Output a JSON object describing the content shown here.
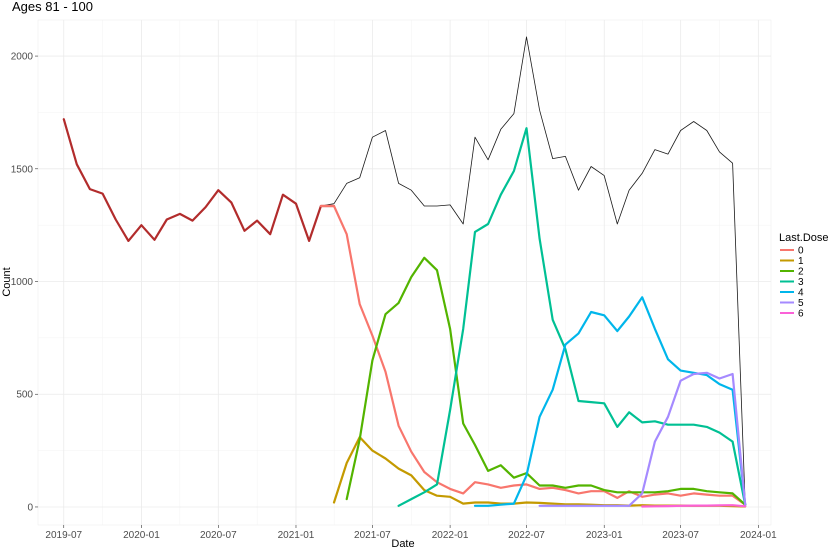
{
  "chart_data": {
    "type": "line",
    "title": "Ages 81 - 100",
    "xlabel": "Date",
    "ylabel": "Count",
    "grid": true,
    "legend_position": "right",
    "legend_title": "Last.Dose",
    "xlim": [
      "2019-05-01",
      "2024-01-31"
    ],
    "ylim": [
      -80,
      2160
    ],
    "x_ticks": [
      "2019-07",
      "2020-01",
      "2020-07",
      "2021-01",
      "2021-07",
      "2022-01",
      "2022-07",
      "2023-01",
      "2023-07",
      "2024-01"
    ],
    "y_ticks": [
      0,
      500,
      1000,
      1500,
      2000
    ],
    "series": [
      {
        "name": "total",
        "color": "#1a1a1a",
        "width": 0.8,
        "dates": [
          "2021-03-01",
          "2021-04-01",
          "2021-05-01",
          "2021-06-01",
          "2021-07-01",
          "2021-08-01",
          "2021-09-01",
          "2021-10-01",
          "2021-11-01",
          "2021-12-01",
          "2022-01-01",
          "2022-02-01",
          "2022-03-01",
          "2022-04-01",
          "2022-05-01",
          "2022-06-01",
          "2022-07-01",
          "2022-08-01",
          "2022-09-01",
          "2022-10-01",
          "2022-11-01",
          "2022-12-01",
          "2023-01-01",
          "2023-02-01",
          "2023-03-01",
          "2023-04-01",
          "2023-05-01",
          "2023-06-01",
          "2023-07-01",
          "2023-08-01",
          "2023-09-01",
          "2023-10-01",
          "2023-11-01",
          "2023-12-01"
        ],
        "values": [
          1335,
          1345,
          1435,
          1460,
          1640,
          1670,
          1435,
          1405,
          1335,
          1335,
          1340,
          1255,
          1640,
          1540,
          1675,
          1745,
          2085,
          1760,
          1545,
          1555,
          1405,
          1510,
          1470,
          1255,
          1405,
          1480,
          1585,
          1565,
          1670,
          1710,
          1670,
          1575,
          1525,
          10
        ]
      },
      {
        "name": "pre",
        "color": "#b22c2c",
        "width": 2.2,
        "dates": [
          "2019-07-01",
          "2019-08-01",
          "2019-09-01",
          "2019-10-01",
          "2019-11-01",
          "2019-12-01",
          "2020-01-01",
          "2020-02-01",
          "2020-03-01",
          "2020-04-01",
          "2020-05-01",
          "2020-06-01",
          "2020-07-01",
          "2020-08-01",
          "2020-09-01",
          "2020-10-01",
          "2020-11-01",
          "2020-12-01",
          "2021-01-01",
          "2021-02-01",
          "2021-03-01",
          "2021-04-01"
        ],
        "values": [
          1720,
          1520,
          1410,
          1390,
          1275,
          1180,
          1250,
          1185,
          1275,
          1300,
          1270,
          1330,
          1405,
          1350,
          1225,
          1270,
          1210,
          1385,
          1345,
          1180,
          1335,
          1335
        ]
      },
      {
        "name": "0",
        "color": "#f8766d",
        "width": 2.2,
        "dates": [
          "2021-03-01",
          "2021-04-01",
          "2021-05-01",
          "2021-06-01",
          "2021-07-01",
          "2021-08-01",
          "2021-09-01",
          "2021-10-01",
          "2021-11-01",
          "2021-12-01",
          "2022-01-01",
          "2022-02-01",
          "2022-03-01",
          "2022-04-01",
          "2022-05-01",
          "2022-06-01",
          "2022-07-01",
          "2022-08-01",
          "2022-09-01",
          "2022-10-01",
          "2022-11-01",
          "2022-12-01",
          "2023-01-01",
          "2023-02-01",
          "2023-03-01",
          "2023-04-01",
          "2023-05-01",
          "2023-06-01",
          "2023-07-01",
          "2023-08-01",
          "2023-09-01",
          "2023-10-01",
          "2023-11-01",
          "2023-12-01"
        ],
        "values": [
          1335,
          1335,
          1210,
          900,
          760,
          600,
          360,
          245,
          155,
          110,
          80,
          60,
          110,
          100,
          85,
          95,
          100,
          80,
          85,
          75,
          60,
          70,
          70,
          40,
          70,
          45,
          55,
          60,
          50,
          60,
          55,
          50,
          50,
          10
        ]
      },
      {
        "name": "1",
        "color": "#c49a00",
        "width": 2.2,
        "dates": [
          "2021-04-01",
          "2021-05-01",
          "2021-06-01",
          "2021-07-01",
          "2021-08-01",
          "2021-09-01",
          "2021-10-01",
          "2021-11-01",
          "2021-12-01",
          "2022-01-01",
          "2022-02-01",
          "2022-03-01",
          "2022-04-01",
          "2022-05-01",
          "2022-06-01",
          "2022-07-01",
          "2022-08-01",
          "2022-09-01",
          "2022-10-01",
          "2022-11-01",
          "2022-12-01",
          "2023-01-01",
          "2023-02-01",
          "2023-03-01",
          "2023-04-01",
          "2023-05-01",
          "2023-06-01",
          "2023-07-01",
          "2023-08-01",
          "2023-09-01",
          "2023-10-01",
          "2023-11-01",
          "2023-12-01"
        ],
        "values": [
          20,
          195,
          310,
          250,
          215,
          170,
          140,
          75,
          50,
          45,
          15,
          20,
          20,
          15,
          15,
          20,
          18,
          15,
          12,
          12,
          10,
          8,
          8,
          6,
          8,
          6,
          6,
          6,
          5,
          5,
          5,
          4,
          2
        ]
      },
      {
        "name": "2",
        "color": "#53b400",
        "width": 2.2,
        "dates": [
          "2021-05-01",
          "2021-06-01",
          "2021-07-01",
          "2021-08-01",
          "2021-09-01",
          "2021-10-01",
          "2021-11-01",
          "2021-12-01",
          "2022-01-01",
          "2022-02-01",
          "2022-03-01",
          "2022-04-01",
          "2022-05-01",
          "2022-06-01",
          "2022-07-01",
          "2022-08-01",
          "2022-09-01",
          "2022-10-01",
          "2022-11-01",
          "2022-12-01",
          "2023-01-01",
          "2023-02-01",
          "2023-03-01",
          "2023-04-01",
          "2023-05-01",
          "2023-06-01",
          "2023-07-01",
          "2023-08-01",
          "2023-09-01",
          "2023-10-01",
          "2023-11-01",
          "2023-12-01"
        ],
        "values": [
          35,
          300,
          650,
          855,
          905,
          1020,
          1105,
          1050,
          790,
          370,
          275,
          160,
          185,
          130,
          150,
          95,
          95,
          85,
          95,
          95,
          75,
          65,
          65,
          65,
          65,
          70,
          80,
          80,
          70,
          65,
          60,
          10
        ]
      },
      {
        "name": "3",
        "color": "#00c094",
        "width": 2.2,
        "dates": [
          "2021-09-01",
          "2021-10-01",
          "2021-11-01",
          "2021-12-01",
          "2022-01-01",
          "2022-02-01",
          "2022-03-01",
          "2022-04-01",
          "2022-05-01",
          "2022-06-01",
          "2022-07-01",
          "2022-08-01",
          "2022-09-01",
          "2022-10-01",
          "2022-11-01",
          "2022-12-01",
          "2023-01-01",
          "2023-02-01",
          "2023-03-01",
          "2023-04-01",
          "2023-05-01",
          "2023-06-01",
          "2023-07-01",
          "2023-08-01",
          "2023-09-01",
          "2023-10-01",
          "2023-11-01",
          "2023-12-01"
        ],
        "values": [
          5,
          35,
          65,
          100,
          430,
          790,
          1220,
          1255,
          1385,
          1490,
          1680,
          1190,
          830,
          700,
          470,
          465,
          460,
          355,
          420,
          375,
          380,
          365,
          365,
          365,
          355,
          330,
          290,
          10
        ]
      },
      {
        "name": "4",
        "color": "#00b6eb",
        "width": 2.2,
        "dates": [
          "2022-03-01",
          "2022-04-01",
          "2022-05-01",
          "2022-06-01",
          "2022-07-01",
          "2022-08-01",
          "2022-09-01",
          "2022-10-01",
          "2022-11-01",
          "2022-12-01",
          "2023-01-01",
          "2023-02-01",
          "2023-03-01",
          "2023-04-01",
          "2023-05-01",
          "2023-06-01",
          "2023-07-01",
          "2023-08-01",
          "2023-09-01",
          "2023-10-01",
          "2023-11-01",
          "2023-12-01"
        ],
        "values": [
          5,
          5,
          10,
          15,
          140,
          400,
          520,
          720,
          770,
          865,
          850,
          780,
          845,
          930,
          790,
          655,
          605,
          595,
          585,
          545,
          520,
          10
        ]
      },
      {
        "name": "5",
        "color": "#a58aff",
        "width": 2.2,
        "dates": [
          "2022-08-01",
          "2022-09-01",
          "2022-10-01",
          "2022-11-01",
          "2022-12-01",
          "2023-01-01",
          "2023-02-01",
          "2023-03-01",
          "2023-04-01",
          "2023-05-01",
          "2023-06-01",
          "2023-07-01",
          "2023-08-01",
          "2023-09-01",
          "2023-10-01",
          "2023-11-01",
          "2023-12-01"
        ],
        "values": [
          5,
          5,
          5,
          5,
          5,
          5,
          5,
          5,
          60,
          290,
          400,
          560,
          590,
          595,
          570,
          590,
          10
        ]
      },
      {
        "name": "6",
        "color": "#fb61d7",
        "width": 2.2,
        "dates": [
          "2023-04-01",
          "2023-05-01",
          "2023-06-01",
          "2023-07-01",
          "2023-08-01",
          "2023-09-01",
          "2023-10-01",
          "2023-11-01",
          "2023-12-01"
        ],
        "values": [
          2,
          3,
          4,
          5,
          6,
          6,
          7,
          8,
          3
        ]
      }
    ],
    "legend": [
      {
        "label": "0",
        "color": "#f8766d"
      },
      {
        "label": "1",
        "color": "#c49a00"
      },
      {
        "label": "2",
        "color": "#53b400"
      },
      {
        "label": "3",
        "color": "#00c094"
      },
      {
        "label": "4",
        "color": "#00b6eb"
      },
      {
        "label": "5",
        "color": "#a58aff"
      },
      {
        "label": "6",
        "color": "#fb61d7"
      }
    ]
  }
}
